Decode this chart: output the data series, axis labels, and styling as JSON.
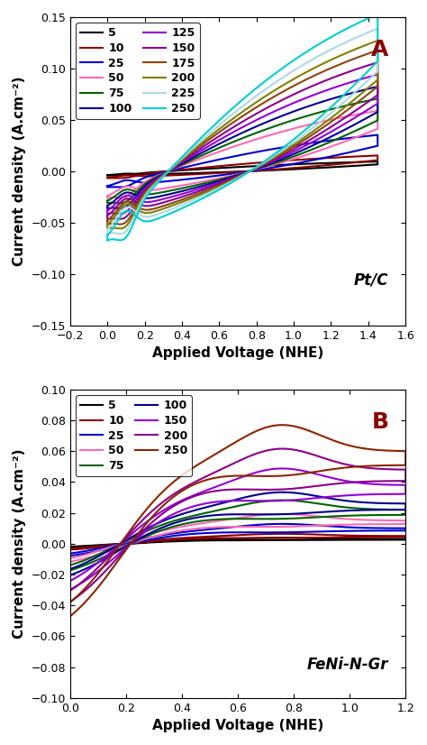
{
  "panel_A": {
    "title": "Pt/C",
    "label": "A",
    "xlabel": "Applied Voltage (NHE)",
    "ylabel": "Current density (A.cm⁻²)",
    "xlim": [
      -0.2,
      1.6
    ],
    "ylim": [
      -0.15,
      0.15
    ],
    "xticks": [
      -0.2,
      0.0,
      0.2,
      0.4,
      0.6,
      0.8,
      1.0,
      1.2,
      1.4,
      1.6
    ],
    "yticks": [
      -0.15,
      -0.1,
      -0.05,
      0.0,
      0.05,
      0.1,
      0.15
    ],
    "curves": [
      {
        "label": "5",
        "color": "#000000",
        "scale": 0.008
      },
      {
        "label": "10",
        "color": "#8b0000",
        "scale": 0.013
      },
      {
        "label": "25",
        "color": "#0000cd",
        "scale": 0.03
      },
      {
        "label": "50",
        "color": "#ff69b4",
        "scale": 0.05
      },
      {
        "label": "75",
        "color": "#006400",
        "scale": 0.06
      },
      {
        "label": "100",
        "color": "#00008b",
        "scale": 0.07
      },
      {
        "label": "125",
        "color": "#9400d3",
        "scale": 0.08
      },
      {
        "label": "150",
        "color": "#8b008b",
        "scale": 0.09
      },
      {
        "label": "175",
        "color": "#8b4513",
        "scale": 0.1
      },
      {
        "label": "200",
        "color": "#808000",
        "scale": 0.108
      },
      {
        "label": "225",
        "color": "#add8e6",
        "scale": 0.118
      },
      {
        "label": "250",
        "color": "#00ced1",
        "scale": 0.13
      }
    ]
  },
  "panel_B": {
    "title": "FeNi-N-Gr",
    "label": "B",
    "xlabel": "Applied Voltage (NHE)",
    "ylabel": "Current density (A.cm⁻²)",
    "xlim": [
      0.0,
      1.2
    ],
    "ylim": [
      -0.1,
      0.1
    ],
    "xticks": [
      0.0,
      0.2,
      0.4,
      0.6,
      0.8,
      1.0,
      1.2
    ],
    "yticks": [
      -0.1,
      -0.08,
      -0.06,
      -0.04,
      -0.02,
      0.0,
      0.02,
      0.04,
      0.06,
      0.08,
      0.1
    ],
    "curves": [
      {
        "label": "5",
        "color": "#000000",
        "scale": 0.003
      },
      {
        "label": "10",
        "color": "#8b0000",
        "scale": 0.005
      },
      {
        "label": "25",
        "color": "#0000cd",
        "scale": 0.01
      },
      {
        "label": "50",
        "color": "#ff69b4",
        "scale": 0.015
      },
      {
        "label": "75",
        "color": "#006400",
        "scale": 0.022
      },
      {
        "label": "100",
        "color": "#00008b",
        "scale": 0.026
      },
      {
        "label": "150",
        "color": "#9400d3",
        "scale": 0.038
      },
      {
        "label": "200",
        "color": "#8b008b",
        "scale": 0.048
      },
      {
        "label": "250",
        "color": "#8b2500",
        "scale": 0.06
      }
    ]
  },
  "background_color": "#ffffff",
  "label_fontsize": 11,
  "tick_fontsize": 9,
  "title_fontsize": 12,
  "legend_fontsize": 9,
  "linewidth": 1.5
}
